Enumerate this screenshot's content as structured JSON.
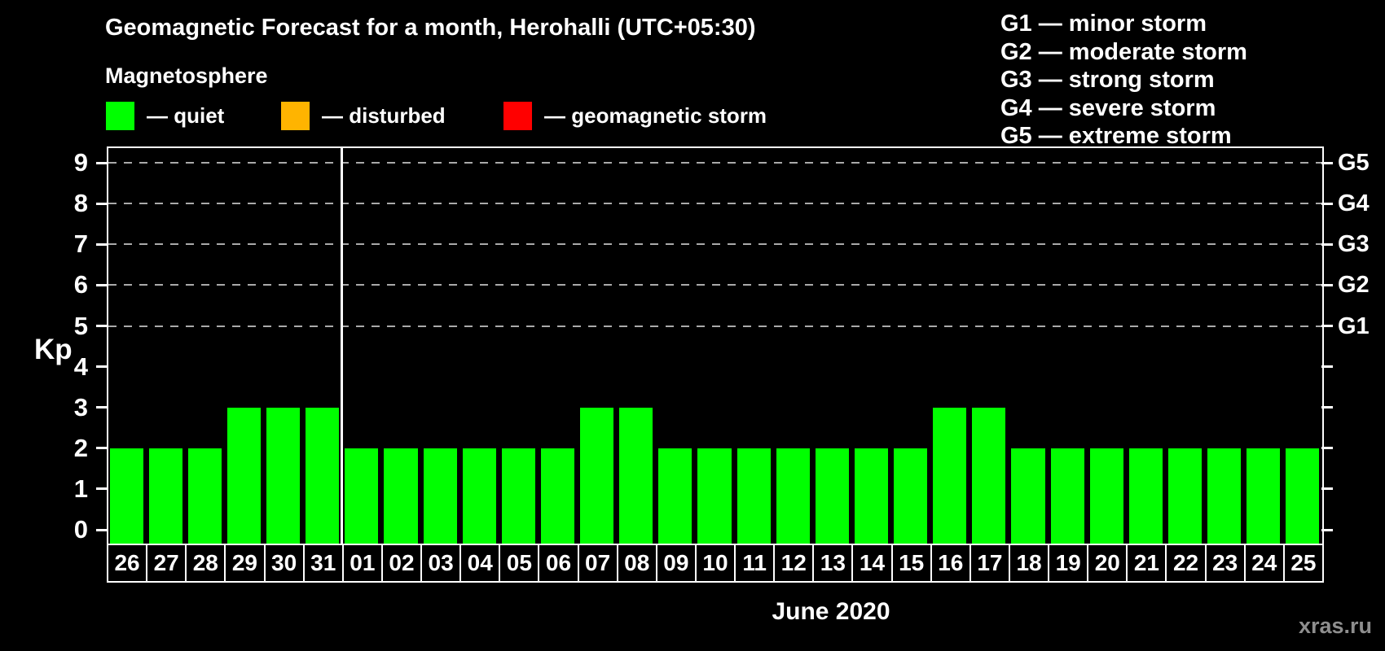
{
  "title": "Geomagnetic Forecast for a month, Herohalli (UTC+05:30)",
  "legend": {
    "title": "Magnetosphere",
    "items": [
      {
        "name": "quiet",
        "label": "— quiet",
        "color": "#00ff00"
      },
      {
        "name": "disturbed",
        "label": "— disturbed",
        "color": "#ffb400"
      },
      {
        "name": "storm",
        "label": "— geomagnetic storm",
        "color": "#ff0000"
      }
    ]
  },
  "g_legend": [
    "G1 — minor storm",
    "G2 — moderate storm",
    "G3 — strong storm",
    "G4 — severe storm",
    "G5 — extreme storm"
  ],
  "y_axis_label": "Kp",
  "x_axis_label": "June 2020",
  "watermark": "xras.ru",
  "colors": {
    "background": "#000000",
    "axis": "#ffffff",
    "grid": "#aaaaaa",
    "bar_quiet": "#00ff00",
    "watermark": "#8e8e8e"
  },
  "chart_data": {
    "type": "bar",
    "title": "Geomagnetic Forecast for a month, Herohalli (UTC+05:30)",
    "xlabel": "June 2020",
    "ylabel": "Kp",
    "ylim": [
      0,
      9
    ],
    "yticks": [
      0,
      1,
      2,
      3,
      4,
      5,
      6,
      7,
      8,
      9
    ],
    "grid": true,
    "gridline_levels": [
      5,
      6,
      7,
      8,
      9
    ],
    "legend_position": "top",
    "right_axis": [
      {
        "kp": 5,
        "label": "G1"
      },
      {
        "kp": 6,
        "label": "G2"
      },
      {
        "kp": 7,
        "label": "G3"
      },
      {
        "kp": 8,
        "label": "G4"
      },
      {
        "kp": 9,
        "label": "G5"
      }
    ],
    "categories": [
      "26",
      "27",
      "28",
      "29",
      "30",
      "31",
      "01",
      "02",
      "03",
      "04",
      "05",
      "06",
      "07",
      "08",
      "09",
      "10",
      "11",
      "12",
      "13",
      "14",
      "15",
      "16",
      "17",
      "18",
      "19",
      "20",
      "21",
      "22",
      "23",
      "24",
      "25"
    ],
    "values": [
      2,
      2,
      2,
      3,
      3,
      3,
      2,
      2,
      2,
      2,
      2,
      2,
      3,
      3,
      2,
      2,
      2,
      2,
      2,
      2,
      2,
      3,
      3,
      2,
      2,
      2,
      2,
      2,
      2,
      2,
      2
    ],
    "bar_status": "quiet",
    "separator_after_index": 5
  }
}
